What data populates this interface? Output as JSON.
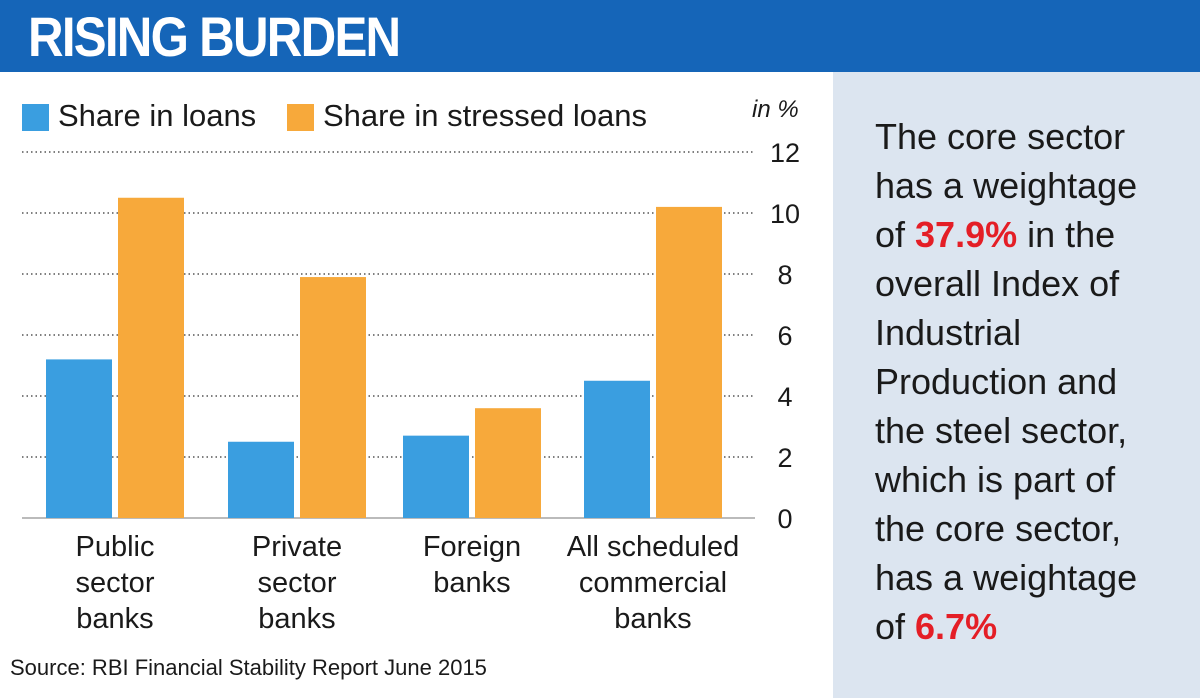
{
  "header": {
    "title": "RISING BURDEN"
  },
  "legend": {
    "items": [
      {
        "label": "Share in loans",
        "color": "#3a9ee0"
      },
      {
        "label": "Share in stressed loans",
        "color": "#f7a93b"
      }
    ]
  },
  "unit_label": "in %",
  "source": "Source: RBI Financial Stability Report June 2015",
  "note": {
    "line1": "The core sector",
    "line2": "has a weightage",
    "line3_pre": "of ",
    "highlight1": "37.9%",
    "line3_post": " in the",
    "line4": "overall Index of",
    "line5": "Industrial",
    "line6": "Production and",
    "line7": "the steel sector,",
    "line8": "which is part of",
    "line9": "the core sector,",
    "line10": "has a weightage",
    "line11_pre": "of ",
    "highlight2": "6.7%",
    "highlight_color": "#e41e26"
  },
  "chart_data": {
    "type": "bar",
    "categories": [
      [
        "Public",
        "sector",
        "banks"
      ],
      [
        "Private",
        "sector",
        "banks"
      ],
      [
        "Foreign",
        "banks"
      ],
      [
        "All scheduled",
        "commercial",
        "banks"
      ]
    ],
    "series": [
      {
        "name": "Share in loans",
        "values": [
          5.2,
          2.5,
          2.7,
          4.5
        ],
        "color": "#3a9ee0"
      },
      {
        "name": "Share in stressed loans",
        "values": [
          10.5,
          7.9,
          3.6,
          10.2
        ],
        "color": "#f7a93b"
      }
    ],
    "yticks": [
      0,
      2,
      4,
      6,
      8,
      10,
      12
    ],
    "ylim": [
      0,
      12
    ],
    "ylabel": "in %",
    "y_axis_position": "right",
    "legend_position": "top-left",
    "grid": "dotted-horizontal"
  }
}
